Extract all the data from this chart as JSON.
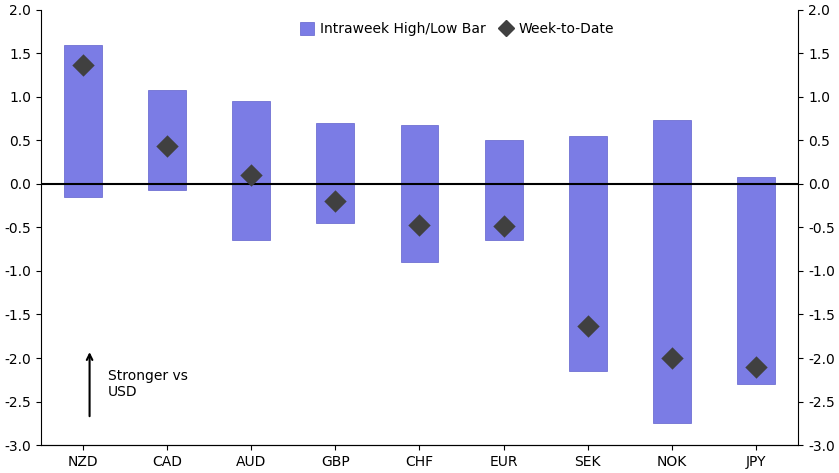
{
  "categories": [
    "NZD",
    "CAD",
    "AUD",
    "GBP",
    "CHF",
    "EUR",
    "SEK",
    "NOK",
    "JPY"
  ],
  "bar_bottoms": [
    -0.15,
    -0.07,
    -0.65,
    -0.45,
    -0.9,
    -0.65,
    -2.15,
    -2.75,
    -2.3
  ],
  "bar_tops": [
    1.6,
    1.08,
    0.95,
    0.7,
    0.68,
    0.5,
    0.55,
    0.73,
    0.08
  ],
  "diamonds": [
    1.37,
    0.43,
    0.1,
    -0.2,
    -0.47,
    -0.48,
    -1.63,
    -2.0,
    -2.1
  ],
  "bar_color": "#7B7CE5",
  "bar_edgecolor": "#6060CC",
  "diamond_color": "#404040",
  "ylim": [
    -3.0,
    2.0
  ],
  "yticks": [
    -3.0,
    -2.5,
    -2.0,
    -1.5,
    -1.0,
    -0.5,
    0.0,
    0.5,
    1.0,
    1.5,
    2.0
  ],
  "bar_width": 0.45,
  "legend_label_bar": "Intraweek High/Low Bar",
  "legend_label_diamond": "Week-to-Date",
  "annotation_text": "Stronger vs\nUSD",
  "background_color": "#FFFFFF",
  "zero_line_color": "#000000",
  "tick_fontsize": 10,
  "legend_fontsize": 10
}
